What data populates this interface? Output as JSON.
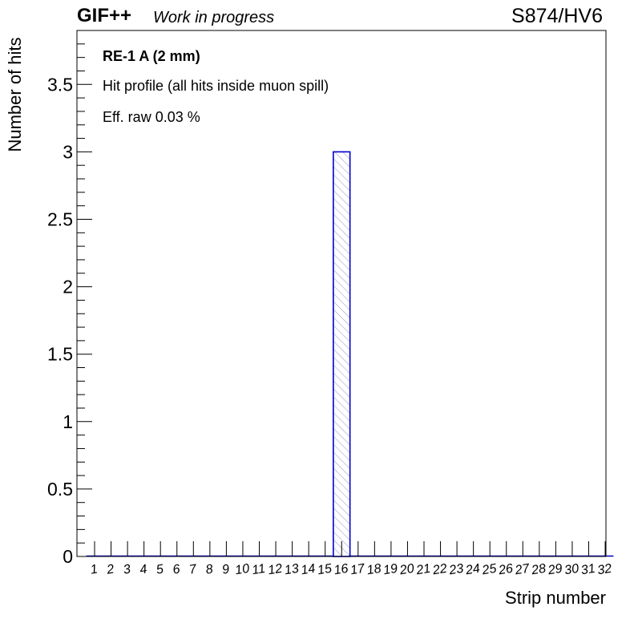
{
  "header": {
    "experiment": "GIF++",
    "status": "Work in progress",
    "run_id": "S874/HV6"
  },
  "annotations": {
    "chamber": "RE-1 A (2 mm)",
    "profile": "Hit profile (all hits inside muon spill)",
    "efficiency": "Eff. raw 0.03 %"
  },
  "colors": {
    "bar_stroke": "#0000cc",
    "bar_hatch": "#9999dd",
    "axis": "#000000",
    "background": "#ffffff"
  },
  "chart_data": {
    "type": "bar",
    "title": "",
    "xlabel": "Strip number",
    "ylabel": "Number of hits",
    "categories": [
      "1",
      "2",
      "3",
      "4",
      "5",
      "6",
      "7",
      "8",
      "9",
      "10",
      "11",
      "12",
      "13",
      "14",
      "15",
      "16",
      "17",
      "18",
      "19",
      "20",
      "21",
      "22",
      "23",
      "24",
      "25",
      "26",
      "27",
      "28",
      "29",
      "30",
      "31",
      "32"
    ],
    "values": [
      0,
      0,
      0,
      0,
      0,
      0,
      0,
      0,
      0,
      0,
      0,
      0,
      0,
      0,
      0,
      3,
      0,
      0,
      0,
      0,
      0,
      0,
      0,
      0,
      0,
      0,
      0,
      0,
      0,
      0,
      0,
      0
    ],
    "ylim": [
      0,
      3.9
    ],
    "yticks": [
      {
        "value": 0,
        "label": "0"
      },
      {
        "value": 0.5,
        "label": "0.5"
      },
      {
        "value": 1,
        "label": "1"
      },
      {
        "value": 1.5,
        "label": "1.5"
      },
      {
        "value": 2,
        "label": "2"
      },
      {
        "value": 2.5,
        "label": "2.5"
      },
      {
        "value": 3,
        "label": "3"
      },
      {
        "value": 3.5,
        "label": "3.5"
      }
    ],
    "y_minor_step": 0.1,
    "grid": false,
    "fill": "hatched"
  }
}
